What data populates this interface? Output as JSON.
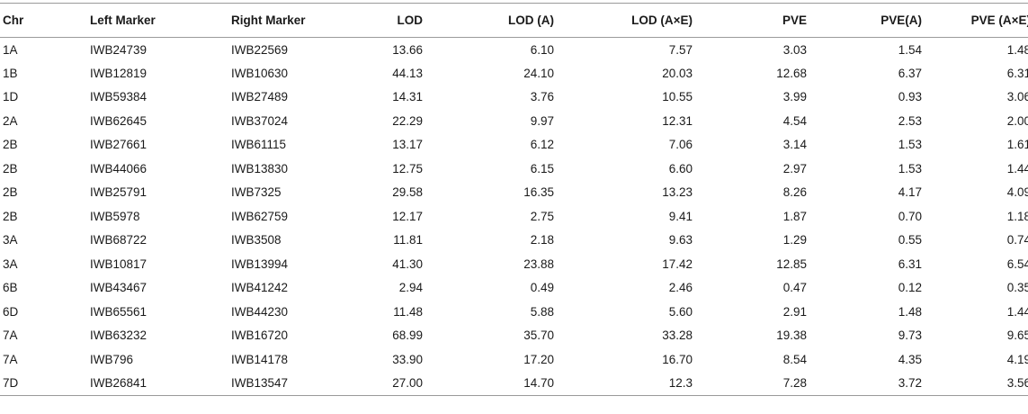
{
  "table": {
    "columns": [
      "Chr",
      "Left Marker",
      "Right Marker",
      "LOD",
      "LOD (A)",
      "LOD (A×E)",
      "PVE",
      "PVE(A)",
      "PVE (A×E)"
    ],
    "rows": [
      [
        "1A",
        "IWB24739",
        "IWB22569",
        "13.66",
        "6.10",
        "7.57",
        "3.03",
        "1.54",
        "1.48"
      ],
      [
        "1B",
        "IWB12819",
        "IWB10630",
        "44.13",
        "24.10",
        "20.03",
        "12.68",
        "6.37",
        "6.31"
      ],
      [
        "1D",
        "IWB59384",
        "IWB27489",
        "14.31",
        "3.76",
        "10.55",
        "3.99",
        "0.93",
        "3.06"
      ],
      [
        "2A",
        "IWB62645",
        "IWB37024",
        "22.29",
        "9.97",
        "12.31",
        "4.54",
        "2.53",
        "2.00"
      ],
      [
        "2B",
        "IWB27661",
        "IWB61115",
        "13.17",
        "6.12",
        "7.06",
        "3.14",
        "1.53",
        "1.61"
      ],
      [
        "2B",
        "IWB44066",
        "IWB13830",
        "12.75",
        "6.15",
        "6.60",
        "2.97",
        "1.53",
        "1.44"
      ],
      [
        "2B",
        "IWB25791",
        "IWB7325",
        "29.58",
        "16.35",
        "13.23",
        "8.26",
        "4.17",
        "4.09"
      ],
      [
        "2B",
        "IWB5978",
        "IWB62759",
        "12.17",
        "2.75",
        "9.41",
        "1.87",
        "0.70",
        "1.18"
      ],
      [
        "3A",
        "IWB68722",
        "IWB3508",
        "11.81",
        "2.18",
        "9.63",
        "1.29",
        "0.55",
        "0.74"
      ],
      [
        "3A",
        "IWB10817",
        "IWB13994",
        "41.30",
        "23.88",
        "17.42",
        "12.85",
        "6.31",
        "6.54"
      ],
      [
        "6B",
        "IWB43467",
        "IWB41242",
        "2.94",
        "0.49",
        "2.46",
        "0.47",
        "0.12",
        "0.35"
      ],
      [
        "6D",
        "IWB65561",
        "IWB44230",
        "11.48",
        "5.88",
        "5.60",
        "2.91",
        "1.48",
        "1.44"
      ],
      [
        "7A",
        "IWB63232",
        "IWB16720",
        "68.99",
        "35.70",
        "33.28",
        "19.38",
        "9.73",
        "9.65"
      ],
      [
        "7A",
        "IWB796",
        "IWB14178",
        "33.90",
        "17.20",
        "16.70",
        "8.54",
        "4.35",
        "4.19"
      ],
      [
        "7D",
        "IWB26841",
        "IWB13547",
        "27.00",
        "14.70",
        "12.3",
        "7.28",
        "3.72",
        "3.56"
      ]
    ]
  }
}
